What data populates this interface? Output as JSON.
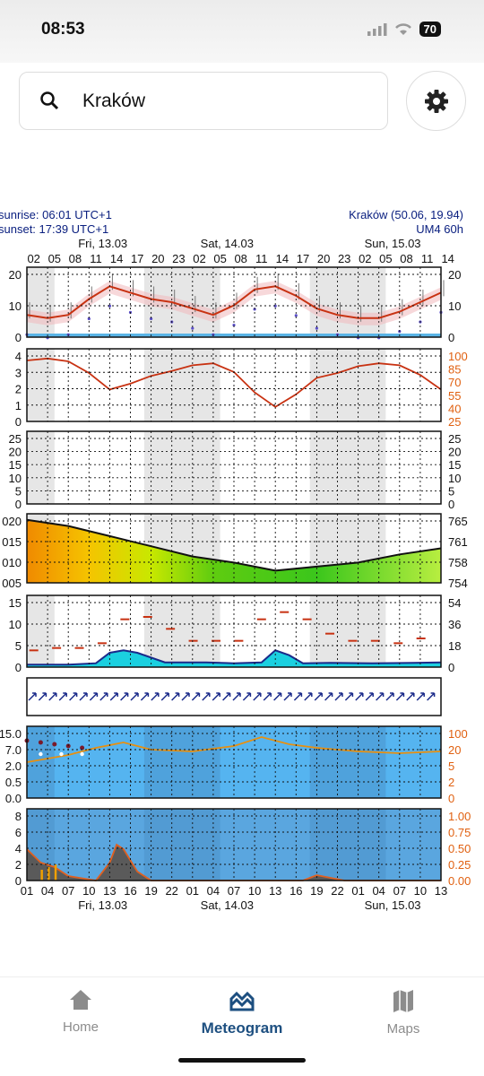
{
  "status_bar": {
    "time": "08:53",
    "battery": "70"
  },
  "search": {
    "query": "Kraków"
  },
  "meteogram": {
    "sunrise": "sunrise: 06:01 UTC+1",
    "sunset": "sunset: 17:39 UTC+1",
    "location": "Kraków (50.06, 19.94)",
    "model": "UM4 60h",
    "dates": [
      "Fri, 13.03",
      "Sat, 14.03",
      "Sun, 15.03"
    ],
    "top_hours": [
      "02",
      "05",
      "08",
      "11",
      "14",
      "17",
      "20",
      "23",
      "02",
      "05",
      "08",
      "11",
      "14",
      "17",
      "20",
      "23",
      "02",
      "05",
      "08",
      "11",
      "14"
    ],
    "bottom_hours": [
      "01",
      "04",
      "07",
      "10",
      "13",
      "16",
      "19",
      "22",
      "01",
      "04",
      "07",
      "10",
      "13",
      "16",
      "19",
      "22",
      "01",
      "04",
      "07",
      "10",
      "13"
    ],
    "panels": {
      "temperature": {
        "left_ticks": [
          "20",
          "10",
          "0"
        ],
        "right_ticks": [
          "20",
          "10",
          "0"
        ]
      },
      "humidity": {
        "left_ticks": [
          "4",
          "3",
          "2",
          "1",
          "0"
        ],
        "right_ticks": [
          "100",
          "85",
          "70",
          "55",
          "40",
          "25"
        ]
      },
      "precip": {
        "left_ticks": [
          "25",
          "20",
          "15",
          "10",
          "5",
          "0"
        ],
        "right_ticks": [
          "25",
          "20",
          "15",
          "10",
          "5",
          "0"
        ]
      },
      "pressure": {
        "left_ticks": [
          "020",
          "015",
          "010",
          "005"
        ],
        "right_ticks": [
          "765",
          "761",
          "758",
          "754"
        ]
      },
      "wind": {
        "left_ticks": [
          "15",
          "10",
          "5",
          "0"
        ],
        "right_ticks": [
          "54",
          "36",
          "18",
          "0"
        ]
      },
      "visibility": {
        "left_ticks": [
          "15.0",
          "7.0",
          "2.0",
          "0.5",
          "0.0"
        ],
        "right_ticks": [
          "100",
          "20",
          "5",
          "2",
          "0"
        ]
      },
      "clouds": {
        "left_ticks": [
          "8",
          "6",
          "4",
          "2",
          "0"
        ],
        "right_ticks": [
          "1.00",
          "0.75",
          "0.50",
          "0.25",
          "0.00"
        ]
      }
    }
  },
  "chart_data": [
    {
      "type": "line",
      "title": "",
      "ylabel": "",
      "ylim": [
        0,
        22
      ],
      "x": [
        0,
        3,
        6,
        9,
        12,
        15,
        18,
        21,
        24,
        27,
        30,
        33,
        36,
        39,
        42,
        45,
        48,
        51,
        54,
        57,
        60
      ],
      "series": [
        {
          "values": [
            7,
            6,
            7,
            12,
            16,
            14,
            12,
            11,
            9,
            7,
            10,
            15,
            16,
            13,
            9,
            7,
            6,
            6,
            8,
            11,
            14
          ]
        }
      ]
    },
    {
      "type": "line",
      "title": "",
      "ylim": [
        25,
        100
      ],
      "x": [
        0,
        3,
        6,
        9,
        12,
        15,
        18,
        21,
        24,
        27,
        30,
        33,
        36,
        39,
        42,
        45,
        48,
        51,
        54,
        57,
        60
      ],
      "series": [
        {
          "values": [
            88,
            90,
            87,
            75,
            58,
            64,
            72,
            77,
            83,
            85,
            76,
            55,
            40,
            53,
            70,
            75,
            82,
            85,
            83,
            73,
            58
          ]
        }
      ]
    },
    {
      "type": "area",
      "title": "",
      "ylim": [
        1005,
        1022
      ],
      "x": [
        0,
        6,
        12,
        18,
        24,
        30,
        36,
        42,
        48,
        54,
        60
      ],
      "series": [
        {
          "values": [
            1020.5,
            1019,
            1016.5,
            1014,
            1011.5,
            1010,
            1008,
            1009,
            1010,
            1012,
            1013.5
          ]
        }
      ]
    },
    {
      "type": "area",
      "title": "",
      "ylim": [
        0,
        15
      ],
      "x": [
        0,
        6,
        10,
        12,
        14,
        16,
        20,
        26,
        30,
        34,
        36,
        38,
        40,
        44,
        50,
        56,
        60
      ],
      "series": [
        {
          "values": [
            0.5,
            0.5,
            0.8,
            3,
            3.5,
            3,
            1,
            1,
            0.8,
            1,
            3.5,
            2.5,
            0.8,
            0.9,
            0.8,
            0.9,
            1
          ]
        }
      ]
    },
    {
      "type": "area",
      "title": "",
      "ylim": [
        0,
        8
      ],
      "x": [
        0,
        2,
        4,
        6,
        10,
        12,
        13,
        14,
        16,
        18,
        24,
        40,
        42,
        44,
        46,
        60
      ],
      "series": [
        {
          "values": [
            3.5,
            2,
            1.5,
            0.5,
            0,
            2,
            4,
            3.5,
            1,
            0,
            0,
            0,
            0.6,
            0.3,
            0,
            0
          ]
        }
      ]
    }
  ],
  "nav": {
    "home": {
      "label": "Home",
      "icon": "home-icon"
    },
    "meteogram": {
      "label": "Meteogram",
      "icon": "meteogram-icon"
    },
    "maps": {
      "label": "Maps",
      "icon": "map-icon"
    }
  },
  "colors": {
    "accent": "#1d4f80",
    "axis_text": "#0b2080",
    "line": "#c83212",
    "water": "#55b4f0"
  }
}
